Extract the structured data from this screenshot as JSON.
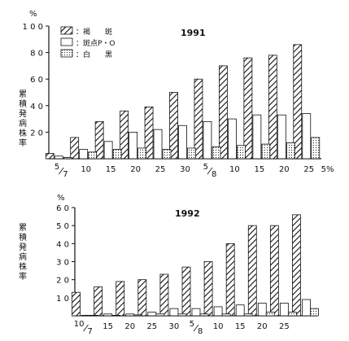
{
  "chart_data": [
    {
      "type": "bar",
      "title": "1991",
      "ylabel": "累積発病株率",
      "y_unit": "%",
      "ylim": [
        0,
        100
      ],
      "yticks": [
        0,
        20,
        40,
        60,
        80,
        100
      ],
      "ytick_labels": [
        "",
        "2 0",
        "4 0",
        "6 0",
        "8 0",
        "1 0 0"
      ],
      "categories": [
        "5/7",
        "10",
        "15",
        "20",
        "25",
        "30",
        "5/8",
        "10",
        "15",
        "20",
        "25"
      ],
      "x_labels": [
        {
          "text": "5",
          "slot": 0,
          "frac": [
            "5",
            "7"
          ]
        },
        {
          "text": "10",
          "slot": 1
        },
        {
          "text": "15",
          "slot": 2
        },
        {
          "text": "20",
          "slot": 3
        },
        {
          "text": "25",
          "slot": 4
        },
        {
          "text": "30",
          "slot": 5
        },
        {
          "text": "5",
          "slot": 6,
          "frac": [
            "5",
            "8"
          ]
        },
        {
          "text": "10",
          "slot": 7
        },
        {
          "text": "15",
          "slot": 8
        },
        {
          "text": "20",
          "slot": 9
        },
        {
          "text": "25",
          "slot": 10
        },
        {
          "text": "5%",
          "slot": 10.75
        }
      ],
      "legend": {
        "position": "top-left"
      },
      "series": [
        {
          "name": "：褐　　斑",
          "pattern": "hatch",
          "values": [
            4,
            16,
            28,
            36,
            39,
            50,
            60,
            70,
            76,
            78,
            86
          ]
        },
        {
          "name": "：斑点P・O",
          "pattern": "open",
          "values": [
            2,
            7,
            13,
            20,
            22,
            25,
            28,
            30,
            33,
            33,
            34
          ]
        },
        {
          "name": "：白　　黒",
          "pattern": "dots",
          "values": [
            1,
            5,
            7,
            8,
            7,
            8,
            9,
            10,
            11,
            12,
            16
          ]
        }
      ]
    },
    {
      "type": "bar",
      "title": "1992",
      "ylabel": "累積発病株率",
      "y_unit": "%",
      "ylim": [
        0,
        60
      ],
      "yticks": [
        0,
        10,
        20,
        30,
        40,
        50,
        60
      ],
      "ytick_labels": [
        "",
        "1 0",
        "2 0",
        "3 0",
        "4 0",
        "5 0",
        "6 0"
      ],
      "categories": [
        "10/7",
        "15",
        "20",
        "25",
        "30",
        "5/8",
        "10",
        "15",
        "20",
        "25",
        ""
      ],
      "x_labels": [
        {
          "text": "10",
          "slot": 0,
          "frac": [
            "10",
            "7"
          ]
        },
        {
          "text": "15",
          "slot": 1
        },
        {
          "text": "20",
          "slot": 2
        },
        {
          "text": "25",
          "slot": 3
        },
        {
          "text": "30",
          "slot": 4
        },
        {
          "text": "5",
          "slot": 5,
          "frac": [
            "5",
            "8"
          ]
        },
        {
          "text": "10",
          "slot": 6
        },
        {
          "text": "15",
          "slot": 7
        },
        {
          "text": "20",
          "slot": 8
        },
        {
          "text": "25",
          "slot": 9
        }
      ],
      "series": [
        {
          "name": "：褐　　斑",
          "pattern": "hatch",
          "values": [
            13,
            16,
            19,
            20,
            23,
            27,
            30,
            40,
            50,
            50,
            56
          ]
        },
        {
          "name": "：斑点P・O",
          "pattern": "open",
          "values": [
            0,
            1,
            1,
            2,
            4,
            4,
            5,
            6,
            7,
            7,
            9
          ]
        },
        {
          "name": "：白　　黒",
          "pattern": "dots",
          "values": [
            0,
            0,
            0.5,
            1,
            1,
            1,
            1,
            1,
            2,
            2,
            4
          ]
        }
      ]
    }
  ]
}
